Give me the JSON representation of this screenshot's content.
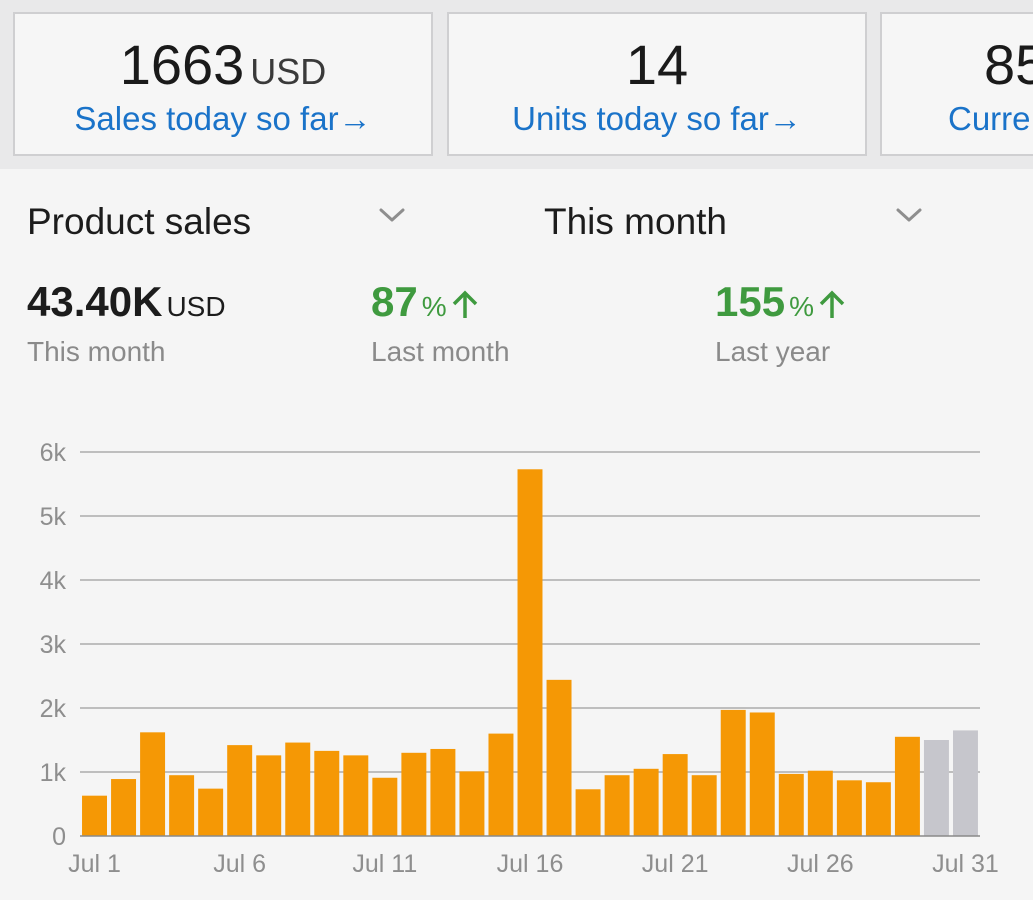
{
  "cards": [
    {
      "value": "1663",
      "unit": "USD",
      "label": "Sales today so far",
      "arrow": "→"
    },
    {
      "value": "14",
      "unit": "",
      "label": "Units today so far",
      "arrow": "→"
    },
    {
      "value": "85",
      "unit": "",
      "label": "Curre",
      "arrow": ""
    }
  ],
  "selectors": {
    "metric": "Product sales",
    "period": "This month"
  },
  "stats": {
    "total": {
      "value": "43.40K",
      "unit": "USD",
      "label": "This month"
    },
    "last_month": {
      "value": "87",
      "unit": "%",
      "label": "Last month"
    },
    "last_year": {
      "value": "155",
      "unit": "%",
      "label": "Last year"
    }
  },
  "colors": {
    "bar": "#f59805",
    "bar_projected": "#c6c6cc",
    "link": "#1a73c9",
    "positive": "#3f9a3f"
  },
  "chart_data": {
    "type": "bar",
    "categories": [
      "Jul 1",
      "Jul 2",
      "Jul 3",
      "Jul 4",
      "Jul 5",
      "Jul 6",
      "Jul 7",
      "Jul 8",
      "Jul 9",
      "Jul 10",
      "Jul 11",
      "Jul 12",
      "Jul 13",
      "Jul 14",
      "Jul 15",
      "Jul 16",
      "Jul 17",
      "Jul 18",
      "Jul 19",
      "Jul 20",
      "Jul 21",
      "Jul 22",
      "Jul 23",
      "Jul 24",
      "Jul 25",
      "Jul 26",
      "Jul 27",
      "Jul 28",
      "Jul 29",
      "Jul 30",
      "Jul 31"
    ],
    "values": [
      630,
      890,
      1620,
      950,
      740,
      1420,
      1260,
      1460,
      1330,
      1260,
      910,
      1300,
      1360,
      1010,
      1600,
      5730,
      2440,
      730,
      950,
      1050,
      1280,
      950,
      1970,
      1930,
      970,
      1020,
      870,
      840,
      1550,
      1500,
      1650
    ],
    "projected": [
      false,
      false,
      false,
      false,
      false,
      false,
      false,
      false,
      false,
      false,
      false,
      false,
      false,
      false,
      false,
      false,
      false,
      false,
      false,
      false,
      false,
      false,
      false,
      false,
      false,
      false,
      false,
      false,
      false,
      true,
      true
    ],
    "ylim": [
      0,
      6000
    ],
    "y_ticks": [
      0,
      1000,
      2000,
      3000,
      4000,
      5000,
      6000
    ],
    "y_tick_labels": [
      "0",
      "1k",
      "2k",
      "3k",
      "4k",
      "5k",
      "6k"
    ],
    "x_tick_labels": [
      "Jul 1",
      "Jul 6",
      "Jul 11",
      "Jul 16",
      "Jul 21",
      "Jul 26",
      "Jul 31"
    ],
    "x_tick_indices": [
      0,
      5,
      10,
      15,
      20,
      25,
      30
    ],
    "grid": true,
    "title": "",
    "xlabel": "",
    "ylabel": ""
  }
}
